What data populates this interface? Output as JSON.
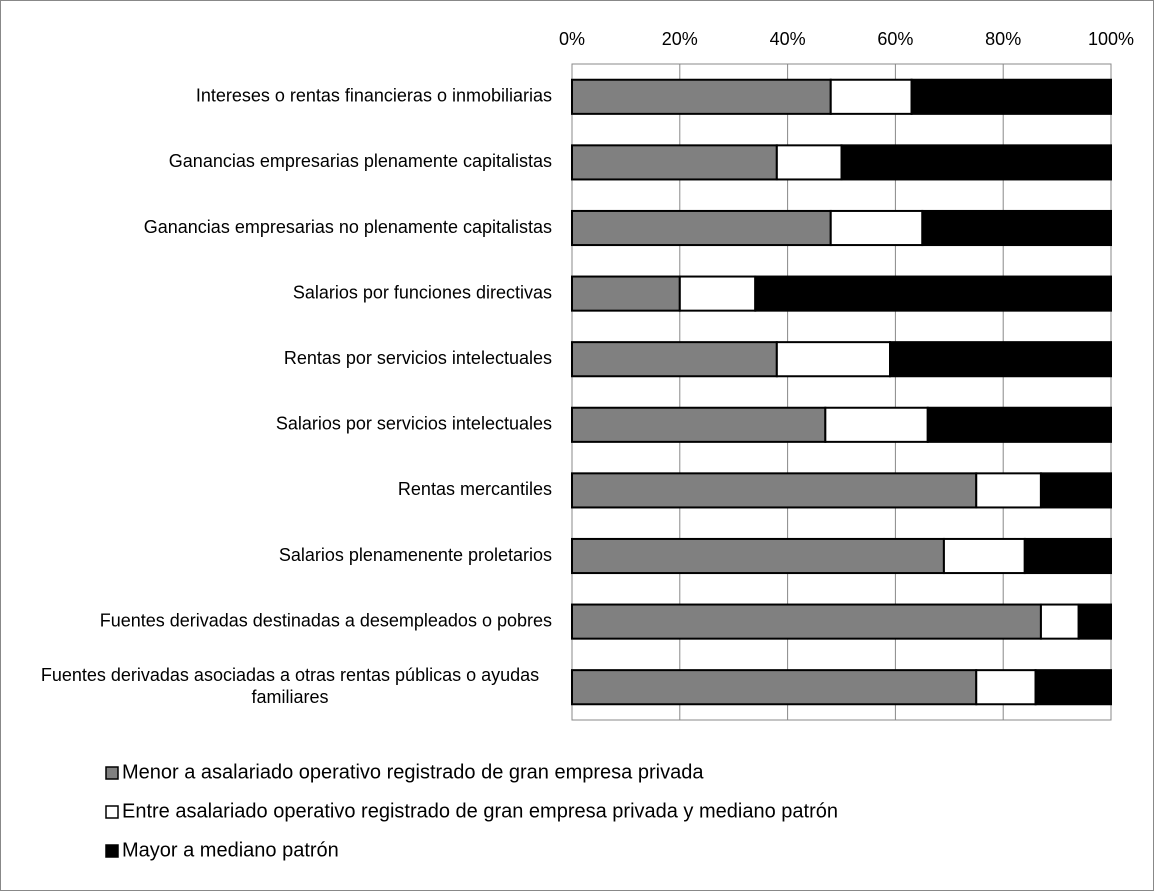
{
  "chart_data": {
    "type": "stacked_barh",
    "categories": [
      "Intereses o rentas financieras o inmobiliarias",
      "Ganancias empresarias plenamente capitalistas",
      "Ganancias empresarias no plenamente capitalistas",
      "Salarios por funciones directivas",
      "Rentas por servicios intelectuales",
      "Salarios por servicios intelectuales",
      "Rentas mercantiles",
      "Salarios plenamenente proletarios",
      "Fuentes derivadas destinadas a desempleados o pobres",
      "Fuentes derivadas asociadas a otras rentas públicas o ayudas familiares"
    ],
    "series": [
      {
        "name": "Menor a asalariado operativo registrado de gran empresa privada",
        "color": "#808080",
        "values": [
          48,
          38,
          48,
          20,
          38,
          47,
          75,
          69,
          87,
          75
        ]
      },
      {
        "name": "Entre asalariado operativo registrado de gran empresa privada y mediano patrón",
        "color": "#ffffff",
        "values": [
          15,
          12,
          17,
          14,
          21,
          19,
          12,
          15,
          7,
          11
        ]
      },
      {
        "name": "Mayor a mediano patrón",
        "color": "#000000",
        "values": [
          37,
          50,
          35,
          66,
          41,
          34,
          13,
          16,
          6,
          14
        ]
      }
    ],
    "xlim": [
      0,
      100
    ],
    "xticks": [
      {
        "value": 0,
        "label": "0%"
      },
      {
        "value": 20,
        "label": "20%"
      },
      {
        "value": 40,
        "label": "40%"
      },
      {
        "value": 60,
        "label": "60%"
      },
      {
        "value": 80,
        "label": "80%"
      },
      {
        "value": 100,
        "label": "100%"
      }
    ],
    "grid": true,
    "legend": "bottom"
  }
}
